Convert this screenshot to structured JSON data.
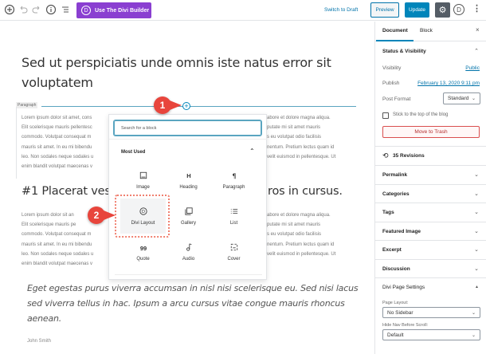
{
  "toolbar": {
    "divi_builder": "Use The Divi Builder",
    "divi_letter": "D",
    "switch_draft": "Switch to Draft",
    "preview": "Preview",
    "update": "Update"
  },
  "editor": {
    "title": "Sed ut perspiciatis unde omnis iste natus error sit voluptatem",
    "paragraph_label": "Paragraph",
    "para1_left": [
      "Lorem ipsum dolor sit amet, cons",
      "Elit scelerisque mauris pellentesc",
      "commodo. Volutpat consequat m",
      "mauris sit amet. In eu mi bibendu",
      "leo. Non sodales neque sodales u",
      "enim blandit volutpat maecenas v"
    ],
    "para1_right": [
      "abore et dolore magna aliqua.",
      "putate mi sit amet mauris",
      "s eu volutpat odio facilisis",
      "nentum. Pretium lectus quam id",
      "velit euismod in pellentesque. Ut",
      ""
    ],
    "heading_left": "#1 Placerat vesti",
    "heading_right": "ros in cursus.",
    "para2_left": [
      "Lorem ipsum dolor sit an",
      "Elit scelerisque mauris pe",
      "commodo. Volutpat consequat m",
      "mauris sit amet. In eu mi bibendu",
      "leo. Non sodales neque sodales u",
      "enim blandit volutpat maecenas v"
    ],
    "para2_right": [
      "abore et dolore magna aliqua.",
      "putate mi sit amet mauris",
      "s eu volutpat odio facilisis",
      "nentum. Pretium lectus quam id",
      "velit euismod in pellentesque. Ut",
      ""
    ],
    "quote": "Eget egestas purus viverra accumsan in nisl nisi scelerisque eu. Sed nisi lacus sed viverra tellus in hac. Ipsum a arcu cursus vitae congue mauris rhoncus aenean.",
    "author": "John Smith"
  },
  "inserter": {
    "search_placeholder": "Search for a block",
    "section": "Most Used",
    "blocks": [
      {
        "label": "Image",
        "icon": "image-icon"
      },
      {
        "label": "Heading",
        "icon": "heading-icon"
      },
      {
        "label": "Paragraph",
        "icon": "paragraph-icon"
      },
      {
        "label": "Divi Layout",
        "icon": "divi-icon"
      },
      {
        "label": "Gallery",
        "icon": "gallery-icon"
      },
      {
        "label": "List",
        "icon": "list-icon"
      },
      {
        "label": "Quote",
        "icon": "quote-icon"
      },
      {
        "label": "Audio",
        "icon": "audio-icon"
      },
      {
        "label": "Cover",
        "icon": "cover-icon"
      }
    ]
  },
  "callouts": [
    "1",
    "2"
  ],
  "sidebar": {
    "tabs": [
      "Document",
      "Block"
    ],
    "status": {
      "title": "Status & Visibility",
      "visibility_label": "Visibility",
      "visibility_value": "Public",
      "publish_label": "Publish",
      "publish_value": "February 13, 2020 9:11 pm",
      "format_label": "Post Format",
      "format_value": "Standard",
      "sticky": "Stick to the top of the blog",
      "trash": "Move to Trash"
    },
    "revisions": "35 Revisions",
    "panels": [
      "Permalink",
      "Categories",
      "Tags",
      "Featured Image",
      "Excerpt",
      "Discussion"
    ],
    "divi": {
      "title": "Divi Page Settings",
      "layout_label": "Page Layout:",
      "layout_value": "No Sidebar",
      "nav_label": "Hide Nav Before Scroll:",
      "nav_value": "Default"
    }
  },
  "colors": {
    "divi_purple": "#8a3fd1",
    "wp_blue": "#0085ba",
    "callout_red": "#e8453c",
    "trash_red": "#d94f4f"
  }
}
